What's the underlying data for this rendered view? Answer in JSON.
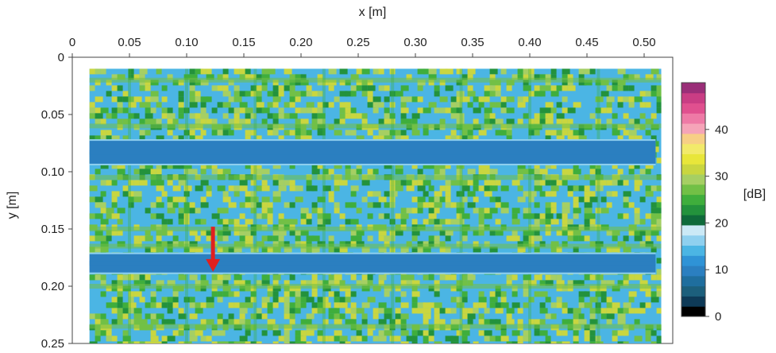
{
  "chart_data": {
    "type": "heatmap",
    "title": "",
    "xlabel": "x [m]",
    "ylabel": "y [m]",
    "x_axis_position": "top",
    "y_axis_inverted": true,
    "xlim": [
      0,
      0.525
    ],
    "ylim": [
      0,
      0.25
    ],
    "x_ticks": [
      0,
      0.05,
      0.1,
      0.15,
      0.2,
      0.25,
      0.3,
      0.35,
      0.4,
      0.45,
      0.5
    ],
    "x_tick_labels": [
      "0",
      "0.05",
      "0.10",
      "0.15",
      "0.20",
      "0.25",
      "0.30",
      "0.35",
      "0.40",
      "0.45",
      "0.50"
    ],
    "y_ticks": [
      0,
      0.05,
      0.1,
      0.15,
      0.2,
      0.25
    ],
    "y_tick_labels": [
      "0",
      "0.05",
      "0.10",
      "0.15",
      "0.20",
      "0.25"
    ],
    "specimen_extent": {
      "x": [
        0.015,
        0.515
      ],
      "y": [
        0.01,
        0.25
      ]
    },
    "low_value_bands": [
      {
        "y": [
          0.073,
          0.093
        ],
        "x": [
          0.015,
          0.51
        ],
        "level_db": 9
      },
      {
        "y": [
          0.172,
          0.188
        ],
        "x": [
          0.015,
          0.51
        ],
        "level_db": 9
      }
    ],
    "grid_pattern_db": {
      "background": 15,
      "pattern": 22
    },
    "colorbar": {
      "label": "[dB]",
      "range": [
        0,
        50
      ],
      "ticks": [
        0,
        10,
        20,
        30,
        40
      ],
      "tick_labels": [
        "0",
        "10",
        "20",
        "30",
        "40"
      ],
      "colors": [
        "#000000",
        "#0e3a57",
        "#1c5f7c",
        "#1f6e9e",
        "#2b7fc0",
        "#2f93d6",
        "#4bb5e4",
        "#8fd0ef",
        "#cbe9f6",
        "#0f6a3a",
        "#23923c",
        "#3fae3c",
        "#72c046",
        "#a6cf63",
        "#c9d640",
        "#e8e63a",
        "#f2ea6a",
        "#f7cf86",
        "#f5a4b8",
        "#ee7aa6",
        "#e0508f",
        "#c93d84",
        "#9a2e78"
      ]
    },
    "annotations": [
      {
        "type": "arrow",
        "color": "#e02020",
        "from": {
          "x": 0.123,
          "y": 0.148
        },
        "to": {
          "x": 0.123,
          "y": 0.186
        }
      }
    ]
  }
}
